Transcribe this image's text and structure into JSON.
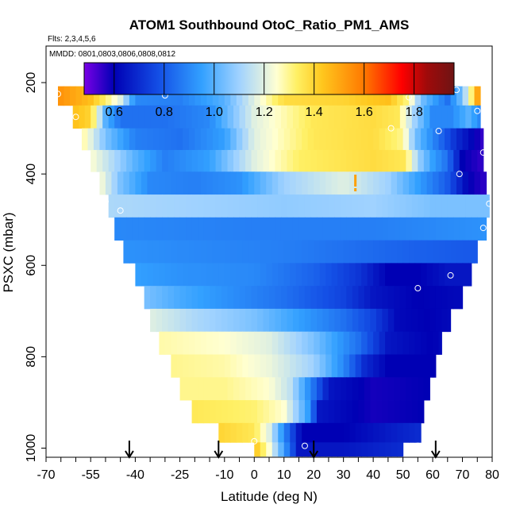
{
  "chart_data": {
    "type": "heatmap",
    "title": "ATOM1 Southbound OtoC_Ratio_PM1_AMS",
    "flights_label": "Flts: 2,3,4,5,6",
    "dates_label": "MMDD: 0801,0803,0806,0808,0812",
    "xlabel": "Latitude (deg N)",
    "ylabel": "PSXC (mbar)",
    "xlim": [
      -70,
      80
    ],
    "ylim": [
      1020,
      120
    ],
    "x_ticks": [
      "-70",
      "-55",
      "-40",
      "-25",
      "-10",
      "0",
      "10",
      "20",
      "30",
      "40",
      "50",
      "60",
      "70",
      "80"
    ],
    "x_tick_values": [
      -70,
      -55,
      -40,
      -25,
      -10,
      0,
      10,
      20,
      30,
      40,
      50,
      60,
      70,
      80
    ],
    "y_ticks": [
      "200",
      "400",
      "600",
      "800",
      "1000"
    ],
    "y_tick_values": [
      200,
      400,
      600,
      800,
      1000
    ],
    "colorbar": {
      "range": [
        0.48,
        1.96
      ],
      "ticks": [
        "0.6",
        "0.8",
        "1.0",
        "1.2",
        "1.4",
        "1.6",
        "1.8"
      ],
      "tick_values": [
        0.6,
        0.8,
        1.0,
        1.2,
        1.4,
        1.6,
        1.8
      ],
      "colors": [
        "#7a00e6",
        "#0000b4",
        "#1450e6",
        "#32a0ff",
        "#a0d2ff",
        "#ffffd2",
        "#fff064",
        "#ffc81e",
        "#ff7800",
        "#ff0000",
        "#a00a0a",
        "#6e1414"
      ],
      "color_values": [
        0.48,
        0.6,
        0.78,
        0.95,
        1.1,
        1.25,
        1.33,
        1.43,
        1.6,
        1.75,
        1.85,
        1.96
      ]
    },
    "arrows_latitude": [
      -42,
      -12,
      20,
      61
    ],
    "marker_latitude": 34,
    "layers": [
      {
        "p": 225,
        "x0": -66,
        "x1": 76,
        "stops": [
          [
            -66,
            1.55
          ],
          [
            -55,
            1.45
          ],
          [
            -45,
            1.2
          ],
          [
            -40,
            0.9
          ],
          [
            -25,
            0.88
          ],
          [
            -10,
            1.0
          ],
          [
            0,
            1.2
          ],
          [
            10,
            1.38
          ],
          [
            30,
            1.4
          ],
          [
            45,
            1.45
          ],
          [
            52,
            1.3
          ],
          [
            56,
            1.05
          ],
          [
            65,
            0.85
          ],
          [
            70,
            1.05
          ],
          [
            74,
            1.4
          ],
          [
            76,
            1.6
          ]
        ]
      },
      {
        "p": 275,
        "x0": -61,
        "x1": 76,
        "stops": [
          [
            -61,
            1.45
          ],
          [
            -55,
            1.4
          ],
          [
            -50,
            1.0
          ],
          [
            -45,
            0.85
          ],
          [
            -30,
            0.85
          ],
          [
            -15,
            0.9
          ],
          [
            0,
            1.2
          ],
          [
            20,
            1.35
          ],
          [
            40,
            1.38
          ],
          [
            48,
            1.35
          ],
          [
            54,
            1.1
          ],
          [
            60,
            0.9
          ],
          [
            66,
            0.9
          ],
          [
            72,
            1.0
          ],
          [
            76,
            0.9
          ]
        ]
      },
      {
        "p": 325,
        "x0": -58,
        "x1": 77,
        "stops": [
          [
            -58,
            1.3
          ],
          [
            -50,
            1.05
          ],
          [
            -40,
            0.88
          ],
          [
            -25,
            0.85
          ],
          [
            -10,
            0.95
          ],
          [
            0,
            1.2
          ],
          [
            20,
            1.35
          ],
          [
            40,
            1.38
          ],
          [
            50,
            1.3
          ],
          [
            54,
            1.05
          ],
          [
            60,
            0.9
          ],
          [
            68,
            0.7
          ],
          [
            77,
            0.55
          ]
        ]
      },
      {
        "p": 370,
        "x0": -55,
        "x1": 77,
        "stops": [
          [
            -55,
            1.25
          ],
          [
            -40,
            1.0
          ],
          [
            -30,
            0.88
          ],
          [
            -15,
            0.95
          ],
          [
            0,
            1.2
          ],
          [
            15,
            1.33
          ],
          [
            40,
            1.38
          ],
          [
            51,
            1.35
          ],
          [
            55,
            1.1
          ],
          [
            60,
            0.95
          ],
          [
            65,
            0.85
          ],
          [
            70,
            0.6
          ],
          [
            77,
            0.55
          ]
        ]
      },
      {
        "p": 420,
        "x0": -52,
        "x1": 78,
        "stops": [
          [
            -52,
            1.25
          ],
          [
            -45,
            1.05
          ],
          [
            -35,
            0.9
          ],
          [
            -20,
            0.88
          ],
          [
            -5,
            0.92
          ],
          [
            10,
            1.1
          ],
          [
            30,
            1.2
          ],
          [
            45,
            1.1
          ],
          [
            55,
            0.95
          ],
          [
            65,
            0.8
          ],
          [
            72,
            0.6
          ],
          [
            78,
            0.55
          ]
        ]
      },
      {
        "p": 470,
        "x0": -49,
        "x1": 79,
        "stops": [
          [
            -49,
            1.12
          ],
          [
            -20,
            1.1
          ],
          [
            10,
            1.08
          ],
          [
            40,
            1.1
          ],
          [
            60,
            1.05
          ],
          [
            79,
            1.05
          ]
        ]
      },
      {
        "p": 520,
        "x0": -47,
        "x1": 78,
        "stops": [
          [
            -47,
            0.9
          ],
          [
            0,
            0.88
          ],
          [
            40,
            0.88
          ],
          [
            60,
            0.9
          ],
          [
            78,
            0.92
          ]
        ]
      },
      {
        "p": 570,
        "x0": -44,
        "x1": 75,
        "stops": [
          [
            -44,
            0.92
          ],
          [
            -20,
            0.9
          ],
          [
            10,
            0.88
          ],
          [
            30,
            0.85
          ],
          [
            50,
            0.82
          ],
          [
            70,
            0.8
          ],
          [
            75,
            0.8
          ]
        ]
      },
      {
        "p": 620,
        "x0": -40,
        "x1": 73,
        "stops": [
          [
            -40,
            0.95
          ],
          [
            -25,
            0.92
          ],
          [
            0,
            0.9
          ],
          [
            20,
            0.82
          ],
          [
            35,
            0.72
          ],
          [
            45,
            0.6
          ],
          [
            55,
            0.6
          ],
          [
            65,
            0.65
          ],
          [
            73,
            0.65
          ]
        ]
      },
      {
        "p": 670,
        "x0": -37,
        "x1": 70,
        "stops": [
          [
            -37,
            1.05
          ],
          [
            -25,
            0.98
          ],
          [
            -10,
            0.92
          ],
          [
            10,
            0.85
          ],
          [
            30,
            0.75
          ],
          [
            40,
            0.65
          ],
          [
            55,
            0.6
          ],
          [
            70,
            0.62
          ]
        ]
      },
      {
        "p": 720,
        "x0": -35,
        "x1": 66,
        "stops": [
          [
            -35,
            1.2
          ],
          [
            -20,
            1.12
          ],
          [
            0,
            1.05
          ],
          [
            15,
            0.95
          ],
          [
            30,
            0.85
          ],
          [
            40,
            0.75
          ],
          [
            48,
            0.62
          ],
          [
            58,
            0.6
          ],
          [
            66,
            0.62
          ]
        ]
      },
      {
        "p": 770,
        "x0": -32,
        "x1": 63,
        "stops": [
          [
            -32,
            1.28
          ],
          [
            -10,
            1.25
          ],
          [
            5,
            1.2
          ],
          [
            20,
            1.05
          ],
          [
            35,
            0.85
          ],
          [
            45,
            0.65
          ],
          [
            60,
            0.6
          ],
          [
            63,
            0.62
          ]
        ]
      },
      {
        "p": 820,
        "x0": -28,
        "x1": 61,
        "stops": [
          [
            -28,
            1.3
          ],
          [
            -10,
            1.28
          ],
          [
            5,
            1.22
          ],
          [
            20,
            1.1
          ],
          [
            30,
            0.9
          ],
          [
            37,
            0.7
          ],
          [
            45,
            0.6
          ],
          [
            61,
            0.6
          ]
        ]
      },
      {
        "p": 870,
        "x0": -25,
        "x1": 59,
        "stops": [
          [
            -25,
            1.3
          ],
          [
            -10,
            1.3
          ],
          [
            5,
            1.25
          ],
          [
            12,
            1.15
          ],
          [
            20,
            0.85
          ],
          [
            25,
            0.65
          ],
          [
            40,
            0.58
          ],
          [
            59,
            0.6
          ]
        ]
      },
      {
        "p": 920,
        "x0": -21,
        "x1": 57,
        "stops": [
          [
            -21,
            1.35
          ],
          [
            0,
            1.32
          ],
          [
            10,
            1.25
          ],
          [
            18,
            0.95
          ],
          [
            22,
            0.65
          ],
          [
            40,
            0.58
          ],
          [
            57,
            0.6
          ]
        ]
      },
      {
        "p": 970,
        "x0": -12,
        "x1": 56,
        "stops": [
          [
            -12,
            1.4
          ],
          [
            0,
            1.35
          ],
          [
            5,
            1.2
          ],
          [
            10,
            0.9
          ],
          [
            16,
            0.6
          ],
          [
            30,
            0.6
          ],
          [
            50,
            0.68
          ],
          [
            56,
            0.7
          ]
        ]
      },
      {
        "p": 1005,
        "x0": 0,
        "x1": 50,
        "stops": [
          [
            0,
            1.45
          ],
          [
            5,
            1.25
          ],
          [
            10,
            0.95
          ],
          [
            15,
            0.65
          ],
          [
            30,
            0.65
          ],
          [
            50,
            0.7
          ]
        ]
      }
    ],
    "sample_points": [
      {
        "lat": -66,
        "p": 225
      },
      {
        "lat": -30,
        "p": 228
      },
      {
        "lat": 52,
        "p": 232
      },
      {
        "lat": 68,
        "p": 216
      },
      {
        "lat": 75,
        "p": 262
      },
      {
        "lat": -60,
        "p": 275
      },
      {
        "lat": 46,
        "p": 300
      },
      {
        "lat": 62,
        "p": 306
      },
      {
        "lat": 77,
        "p": 353
      },
      {
        "lat": 69,
        "p": 400
      },
      {
        "lat": -50,
        "p": 460
      },
      {
        "lat": -45,
        "p": 480
      },
      {
        "lat": 79,
        "p": 465
      },
      {
        "lat": 77,
        "p": 518
      },
      {
        "lat": 66,
        "p": 622
      },
      {
        "lat": 55,
        "p": 650
      },
      {
        "lat": 0,
        "p": 985
      },
      {
        "lat": 17,
        "p": 995
      },
      {
        "lat": 55,
        "p": 995
      }
    ]
  }
}
